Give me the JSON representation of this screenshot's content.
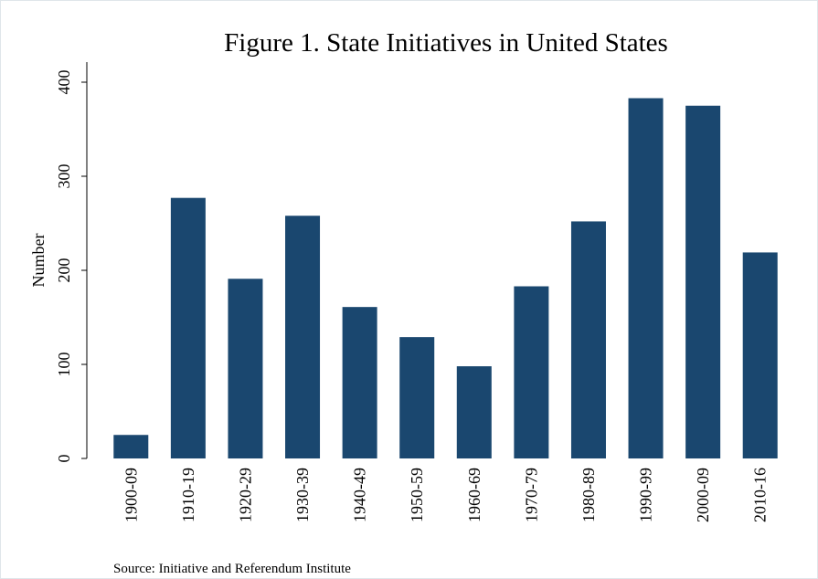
{
  "chart_data": {
    "type": "bar",
    "title": "Figure 1. State Initiatives in United States",
    "y_label": "Number",
    "source": "Source: Initiative and Referendum Institute",
    "categories": [
      "1900-09",
      "1910-19",
      "1920-29",
      "1930-39",
      "1940-49",
      "1950-59",
      "1960-69",
      "1970-79",
      "1980-89",
      "1990-99",
      "2000-09",
      "2010-16"
    ],
    "values": [
      25,
      277,
      191,
      258,
      161,
      129,
      98,
      183,
      252,
      383,
      375,
      219
    ],
    "color": "#1a476f",
    "ylim": [
      0,
      400
    ],
    "yticks": [
      0,
      100,
      200,
      300,
      400
    ],
    "grid": false
  }
}
